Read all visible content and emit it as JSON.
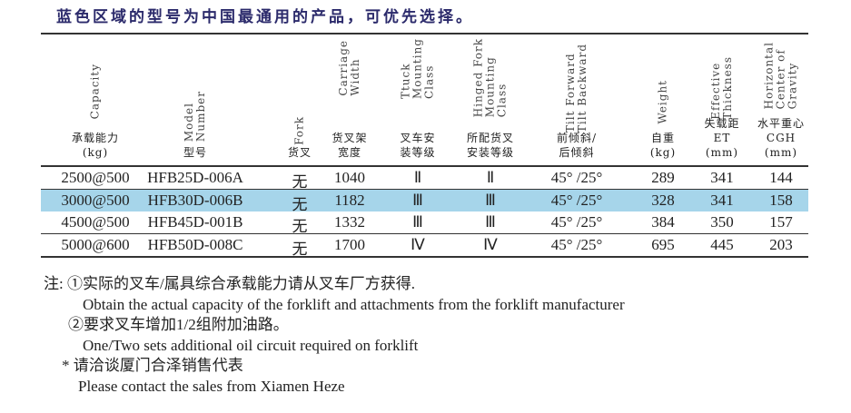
{
  "title": "蓝色区域的型号为中国最通用的产品，可优先选择。",
  "highlight_color": "#a6d5ea",
  "headers": [
    {
      "en": "Capacity",
      "zh": "承载能力\n(kg)"
    },
    {
      "en": "Model\nNumber",
      "zh": "型号"
    },
    {
      "en": "Fork",
      "zh": "货叉"
    },
    {
      "en": "Carriage\nWidth",
      "zh": "货叉架\n宽度"
    },
    {
      "en": "Ttuck\nMounting\nClass",
      "zh": "叉车安\n装等级"
    },
    {
      "en": "Hinged Fork\nMounting\nClass",
      "zh": "所配货叉\n安装等级"
    },
    {
      "en": "Tilt Forward\nTilt Backward",
      "zh": "前倾斜/\n后倾斜"
    },
    {
      "en": "Weight",
      "zh": "自重\n(kg)"
    },
    {
      "en": "Effective\nThickness",
      "zh": "失载距\nET\n(mm)"
    },
    {
      "en": "Horizontal\nCenter of\nGravity",
      "zh": "水平重心\nCGH\n(mm)"
    }
  ],
  "rows": [
    {
      "highlight": false,
      "cells": [
        "2500@500",
        "HFB25D-006A",
        "无",
        "1040",
        "Ⅱ",
        "Ⅱ",
        "45° /25°",
        "289",
        "341",
        "144"
      ]
    },
    {
      "highlight": true,
      "cells": [
        "3000@500",
        "HFB30D-006B",
        "无",
        "1182",
        "Ⅲ",
        "Ⅲ",
        "45° /25°",
        "328",
        "341",
        "158"
      ]
    },
    {
      "highlight": false,
      "cells": [
        "4500@500",
        "HFB45D-001B",
        "无",
        "1332",
        "Ⅲ",
        "Ⅲ",
        "45° /25°",
        "384",
        "350",
        "157"
      ]
    },
    {
      "highlight": false,
      "cells": [
        "5000@600",
        "HFB50D-008C",
        "无",
        "1700",
        "Ⅳ",
        "Ⅳ",
        "45° /25°",
        "695",
        "445",
        "203"
      ]
    }
  ],
  "notes": [
    "注: ①实际的叉车/属具综合承载能力请从叉车厂方获得.",
    "Obtain the actual capacity of the forklift and attachments from the forklift manufacturer",
    "②要求叉车增加1/2组附加油路。",
    "One/Two sets additional oil circuit required on forklift",
    "* 请洽谈厦门合泽销售代表",
    "Please contact the sales from Xiamen Heze"
  ]
}
